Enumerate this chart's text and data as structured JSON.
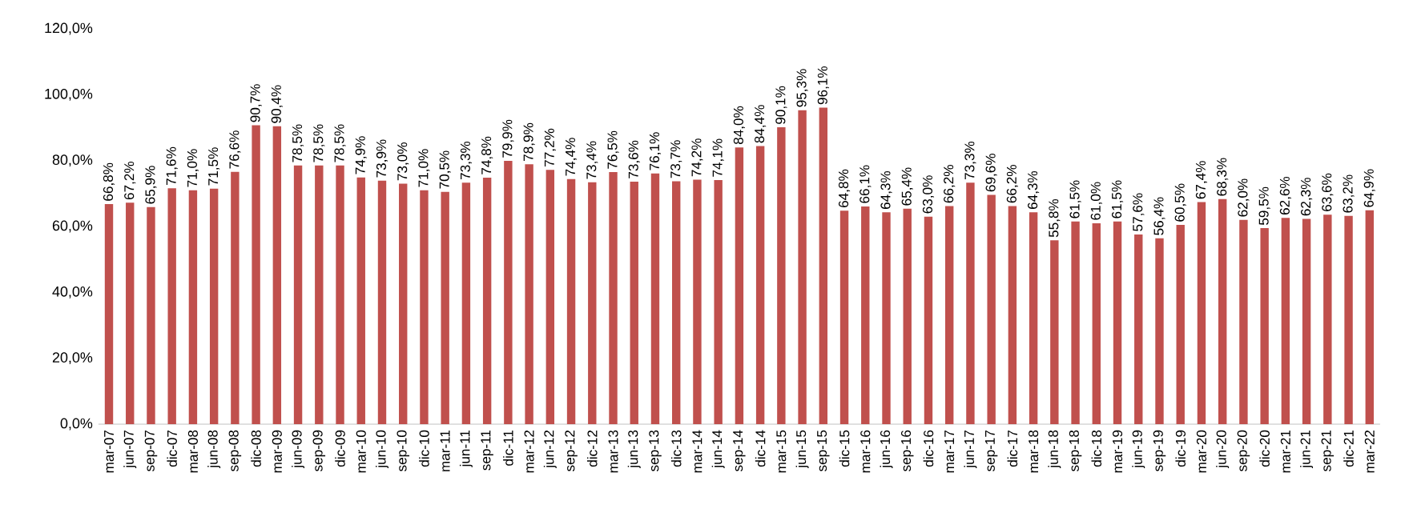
{
  "chart_data": {
    "type": "bar",
    "color": "#c0504d",
    "ylim": [
      0,
      120
    ],
    "yticks": [
      {
        "value": 0,
        "label": "0,0%"
      },
      {
        "value": 20,
        "label": "20,0%"
      },
      {
        "value": 40,
        "label": "40,0%"
      },
      {
        "value": 60,
        "label": "60,0%"
      },
      {
        "value": 80,
        "label": "80,0%"
      },
      {
        "value": 100,
        "label": "100,0%"
      },
      {
        "value": 120,
        "label": "120,0%"
      }
    ],
    "categories": [
      "mar-07",
      "jun-07",
      "sep-07",
      "dic-07",
      "mar-08",
      "jun-08",
      "sep-08",
      "dic-08",
      "mar-09",
      "jun-09",
      "sep-09",
      "dic-09",
      "mar-10",
      "jun-10",
      "sep-10",
      "dic-10",
      "mar-11",
      "jun-11",
      "sep-11",
      "dic-11",
      "mar-12",
      "jun-12",
      "sep-12",
      "dic-12",
      "mar-13",
      "jun-13",
      "sep-13",
      "dic-13",
      "mar-14",
      "jun-14",
      "sep-14",
      "dic-14",
      "mar-15",
      "jun-15",
      "sep-15",
      "dic-15",
      "mar-16",
      "jun-16",
      "sep-16",
      "dic-16",
      "mar-17",
      "jun-17",
      "sep-17",
      "dic-17",
      "mar-18",
      "jun-18",
      "sep-18",
      "dic-18",
      "mar-19",
      "jun-19",
      "sep-19",
      "dic-19",
      "mar-20",
      "jun-20",
      "sep-20",
      "dic-20",
      "mar-21",
      "jun-21",
      "sep-21",
      "dic-21",
      "mar-22"
    ],
    "values": [
      66.8,
      67.2,
      65.9,
      71.6,
      71.0,
      71.5,
      76.6,
      90.7,
      90.4,
      78.5,
      78.5,
      78.5,
      74.9,
      73.9,
      73.0,
      71.0,
      70.5,
      73.3,
      74.8,
      79.9,
      78.9,
      77.2,
      74.4,
      73.4,
      76.5,
      73.6,
      76.1,
      73.7,
      74.2,
      74.1,
      84.0,
      84.4,
      90.1,
      95.3,
      96.1,
      64.8,
      66.1,
      64.3,
      65.4,
      63.0,
      66.2,
      73.3,
      69.6,
      66.2,
      64.3,
      55.8,
      61.5,
      61.0,
      61.5,
      57.6,
      56.4,
      60.5,
      67.4,
      68.3,
      62.0,
      59.5,
      62.6,
      62.3,
      63.6,
      63.2,
      64.9
    ],
    "value_labels": [
      "66,8%",
      "67,2%",
      "65,9%",
      "71,6%",
      "71,0%",
      "71,5%",
      "76,6%",
      "90,7%",
      "90,4%",
      "78,5%",
      "78,5%",
      "78,5%",
      "74,9%",
      "73,9%",
      "73,0%",
      "71,0%",
      "70,5%",
      "73,3%",
      "74,8%",
      "79,9%",
      "78,9%",
      "77,2%",
      "74,4%",
      "73,4%",
      "76,5%",
      "73,6%",
      "76,1%",
      "73,7%",
      "74,2%",
      "74,1%",
      "84,0%",
      "84,4%",
      "90,1%",
      "95,3%",
      "96,1%",
      "64,8%",
      "66,1%",
      "64,3%",
      "65,4%",
      "63,0%",
      "66,2%",
      "73,3%",
      "69,6%",
      "66,2%",
      "64,3%",
      "55,8%",
      "61,5%",
      "61,0%",
      "61,5%",
      "57,6%",
      "56,4%",
      "60,5%",
      "67,4%",
      "68,3%",
      "62,0%",
      "59,5%",
      "62,6%",
      "62,3%",
      "63,6%",
      "63,2%",
      "64,9%"
    ],
    "grid": false
  }
}
